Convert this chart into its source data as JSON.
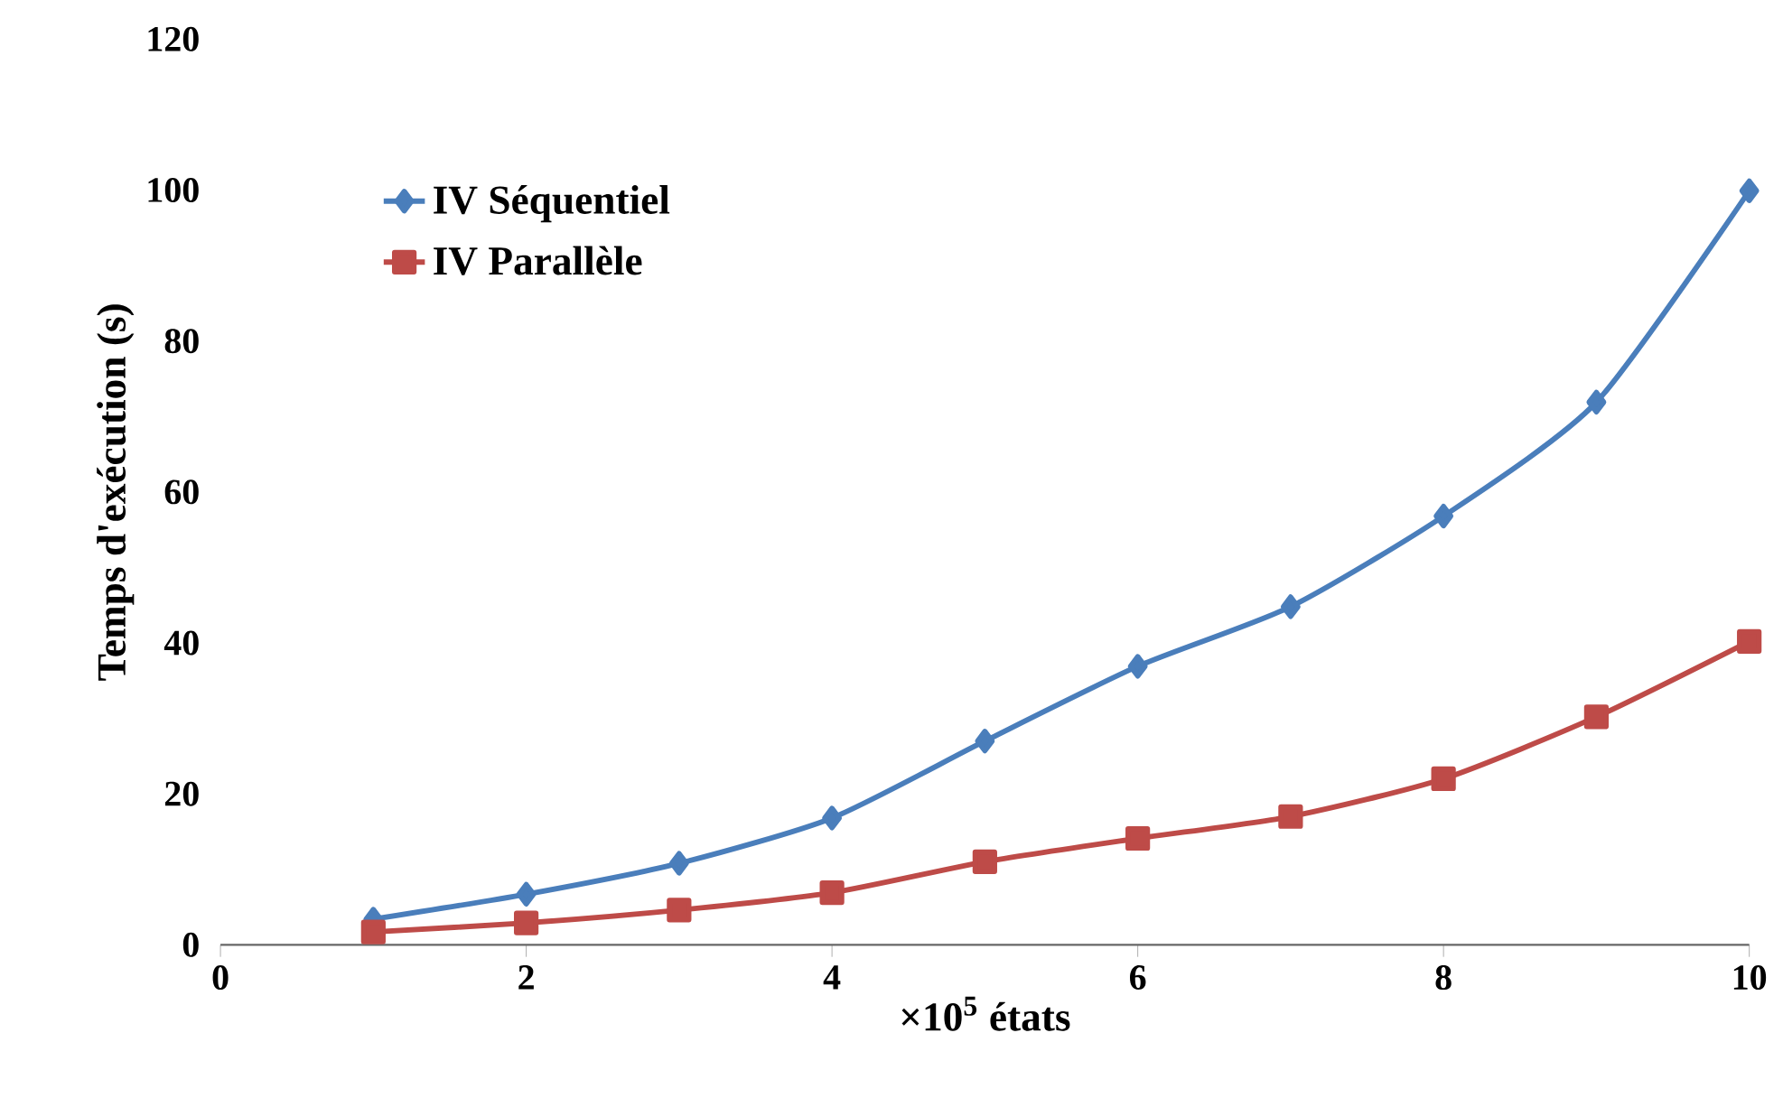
{
  "chart_data": {
    "type": "line",
    "xlabel": "×10$^{5}$ états",
    "ylabel": "Temps d'exécution (s)",
    "x": [
      1,
      2,
      3,
      4,
      5,
      6,
      7,
      8,
      9,
      10
    ],
    "series": [
      {
        "name": "IV Séquentiel",
        "color": "#4a7ebb",
        "marker": "diamond",
        "values": [
          3.4,
          6.7,
          10.8,
          16.8,
          27,
          36.9,
          44.8,
          56.8,
          71.9,
          99.9
        ]
      },
      {
        "name": "IV Parallèle",
        "color": "#be4b48",
        "marker": "square",
        "values": [
          1.7,
          2.9,
          4.6,
          6.9,
          11,
          14.1,
          17,
          22,
          30.2,
          40.2
        ]
      }
    ],
    "xlim": [
      0,
      10
    ],
    "ylim": [
      0,
      120
    ],
    "xticks": [
      0,
      2,
      4,
      6,
      8,
      10
    ],
    "yticks": [
      0,
      20,
      40,
      60,
      80,
      100,
      120
    ],
    "grid": false,
    "legend": "top left",
    "line_style": "solid"
  }
}
